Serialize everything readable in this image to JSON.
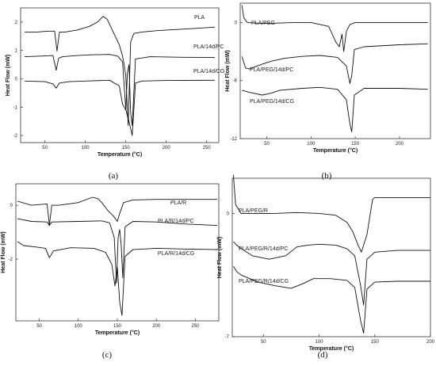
{
  "panels": [
    {
      "caption": "(a)",
      "chart_data": {
        "type": "line",
        "xlabel": "Temperature (°C)",
        "ylabel": "Heat Flow (mW)",
        "xlim": [
          20,
          265
        ],
        "ylim": [
          -2.25,
          2.5
        ],
        "xticks": [
          50,
          100,
          150,
          200,
          250
        ],
        "yticks": [
          -2,
          -1,
          0,
          1,
          2
        ],
        "series": [
          {
            "name": "PLA",
            "x": [
              25,
              40,
              55,
              62,
              65,
              68,
              75,
              90,
              105,
              115,
              122,
              127,
              132,
              137,
              142,
              146,
              148,
              150,
              153,
              156,
              160,
              170,
              190,
              220,
              260
            ],
            "y": [
              1.65,
              1.65,
              1.68,
              1.68,
              0.98,
              1.65,
              1.65,
              1.72,
              1.85,
              2.0,
              2.2,
              2.1,
              1.8,
              1.5,
              1.2,
              0.8,
              0.5,
              0.1,
              -1.65,
              1.3,
              1.6,
              1.65,
              1.7,
              1.75,
              1.82
            ]
          },
          {
            "name": "PLA/14d/PC",
            "x": [
              25,
              45,
              60,
              64,
              67,
              72,
              90,
              110,
              130,
              140,
              146,
              150,
              152,
              154,
              156,
              158,
              162,
              180,
              220,
              260
            ],
            "y": [
              0.78,
              0.8,
              0.82,
              0.3,
              0.73,
              0.78,
              0.82,
              0.85,
              0.86,
              0.8,
              0.6,
              -1.1,
              0.2,
              0.5,
              -1.2,
              -1.65,
              0.7,
              0.78,
              0.76,
              0.75
            ]
          },
          {
            "name": "PLA/14d/CG",
            "x": [
              25,
              50,
              60,
              64,
              68,
              80,
              100,
              130,
              142,
              146,
              150,
              154,
              158,
              162,
              170,
              200,
              260
            ],
            "y": [
              -0.08,
              -0.1,
              -0.18,
              -0.33,
              -0.15,
              -0.1,
              -0.08,
              -0.05,
              -0.25,
              -0.9,
              -1.1,
              -1.5,
              -2.0,
              -0.15,
              -0.08,
              -0.06,
              -0.05
            ]
          }
        ]
      }
    },
    {
      "caption": "(b)",
      "chart_data": {
        "type": "line",
        "xlabel": "Temperature (°C)",
        "ylabel": "Heat Flow (mW)",
        "xlim": [
          20,
          235
        ],
        "ylim": [
          -12,
          2
        ],
        "xticks": [
          50,
          100,
          150,
          200
        ],
        "yticks": [
          -12,
          -6,
          0
        ],
        "series": [
          {
            "name": "PLA/PEG",
            "x": [
              22,
              24,
              28,
              35,
              50,
              80,
              100,
              120,
              128,
              132,
              135,
              137,
              140,
              144,
              150,
              170,
              200,
              232
            ],
            "y": [
              1.8,
              0.5,
              0,
              -0.05,
              -0.1,
              0,
              0,
              -0.4,
              -2.0,
              -2.5,
              -1.2,
              -3.0,
              -0.9,
              -0.2,
              0,
              0,
              0,
              0
            ]
          },
          {
            "name": "PLA/PEG/14d/PC",
            "x": [
              22,
              26,
              30,
              45,
              55,
              70,
              90,
              110,
              130,
              140,
              144,
              146,
              149,
              160,
              200,
              232
            ],
            "y": [
              -3.5,
              -4.7,
              -4.8,
              -4.3,
              -4.0,
              -3.7,
              -3.5,
              -3.4,
              -3.6,
              -4.5,
              -6.3,
              -5.5,
              -2.8,
              -2.5,
              -2.3,
              -2.2
            ]
          },
          {
            "name": "PLA/PEG/14d/CG",
            "x": [
              22,
              30,
              45,
              55,
              65,
              90,
              110,
              130,
              140,
              144,
              146,
              149,
              160,
              200,
              232
            ],
            "y": [
              -7.0,
              -7.2,
              -7.5,
              -7.3,
              -7.0,
              -6.8,
              -6.7,
              -6.9,
              -8.0,
              -10.5,
              -11.3,
              -7.5,
              -6.8,
              -6.8,
              -6.9
            ]
          }
        ]
      }
    },
    {
      "caption": "(c)",
      "chart_data": {
        "type": "line",
        "xlabel": "Temperature (°C)",
        "ylabel": "Heat Flow (mW)",
        "xlim": [
          20,
          280
        ],
        "ylim": [
          -4.3,
          0.8
        ],
        "xticks": [
          50,
          100,
          150,
          200,
          250
        ],
        "yticks": [
          -2,
          0
        ],
        "series": [
          {
            "name": "PLA/R",
            "x": [
              22,
              40,
              60,
              63,
              66,
              75,
              100,
              118,
              125,
              130,
              138,
              145,
              150,
              153,
              158,
              170,
              200,
              240,
              278
            ],
            "y": [
              0.15,
              0,
              0.05,
              -0.75,
              0,
              0,
              0.1,
              0.3,
              0.25,
              0.1,
              -0.2,
              -0.4,
              -0.6,
              -0.3,
              0.1,
              0.2,
              0.22,
              0.22,
              0.22
            ]
          },
          {
            "name": "PLA/R/14d/PC",
            "x": [
              22,
              40,
              60,
              63,
              66,
              100,
              130,
              140,
              146,
              149,
              151,
              153,
              155,
              157,
              160,
              170,
              200,
              240,
              278
            ],
            "y": [
              -0.5,
              -0.6,
              -0.62,
              -0.75,
              -0.62,
              -0.6,
              -0.58,
              -0.65,
              -1.2,
              -2.9,
              -1.2,
              -0.9,
              -1.5,
              -2.7,
              -0.8,
              -0.6,
              -0.62,
              -0.7,
              -0.75
            ]
          },
          {
            "name": "PLA/R/14d/CG",
            "x": [
              22,
              30,
              45,
              58,
              63,
              68,
              90,
              120,
              135,
              143,
              147,
              150,
              153,
              156,
              160,
              170,
              200,
              240,
              278
            ],
            "y": [
              -1.35,
              -1.5,
              -1.55,
              -1.6,
              -1.95,
              -1.7,
              -1.58,
              -1.6,
              -1.75,
              -2.2,
              -3.0,
              -2.3,
              -3.6,
              -4.1,
              -1.9,
              -1.65,
              -1.6,
              -1.63,
              -1.65
            ]
          }
        ]
      }
    },
    {
      "caption": "(d)",
      "chart_data": {
        "type": "line",
        "xlabel": "Temperature (°C)",
        "ylabel": "Heat Flow (mW)",
        "xlim": [
          22,
          200
        ],
        "ylim": [
          -7,
          2
        ],
        "xticks": [
          50,
          100,
          150,
          200
        ],
        "yticks": [
          -7,
          0
        ],
        "series": [
          {
            "name": "PLA/PEG/R",
            "x": [
              23,
              25,
              30,
              40,
              60,
              80,
              100,
              115,
              125,
              130,
              135,
              138,
              140,
              143,
              148,
              150,
              155,
              170,
              200
            ],
            "y": [
              2.2,
              0.5,
              0,
              0,
              0,
              0.05,
              0,
              -0.1,
              -0.5,
              -1.0,
              -1.8,
              -2.2,
              -1.8,
              -1.2,
              0.8,
              0.9,
              0.9,
              0.9,
              0.9
            ]
          },
          {
            "name": "PLA/PEG/R/14d/PC",
            "x": [
              23,
              26,
              30,
              40,
              55,
              70,
              80,
              90,
              100,
              115,
              125,
              132,
              137,
              140,
              143,
              150,
              170,
              200
            ],
            "y": [
              -1.6,
              -1.8,
              -2.0,
              -2.4,
              -2.6,
              -2.4,
              -1.9,
              -1.8,
              -1.75,
              -1.8,
              -2.0,
              -2.4,
              -4.0,
              -5.2,
              -2.6,
              -2.2,
              -2.1,
              -2.1
            ]
          },
          {
            "name": "PLA/PEG/R/14d/CG",
            "x": [
              23,
              26,
              30,
              45,
              60,
              75,
              85,
              95,
              110,
              125,
              132,
              137,
              140,
              143,
              150,
              170,
              200
            ],
            "y": [
              -3.0,
              -3.3,
              -3.5,
              -3.9,
              -4.1,
              -4.25,
              -4.0,
              -3.7,
              -3.7,
              -3.8,
              -4.2,
              -6.0,
              -6.8,
              -4.3,
              -3.9,
              -3.85,
              -3.85
            ]
          }
        ]
      }
    }
  ]
}
